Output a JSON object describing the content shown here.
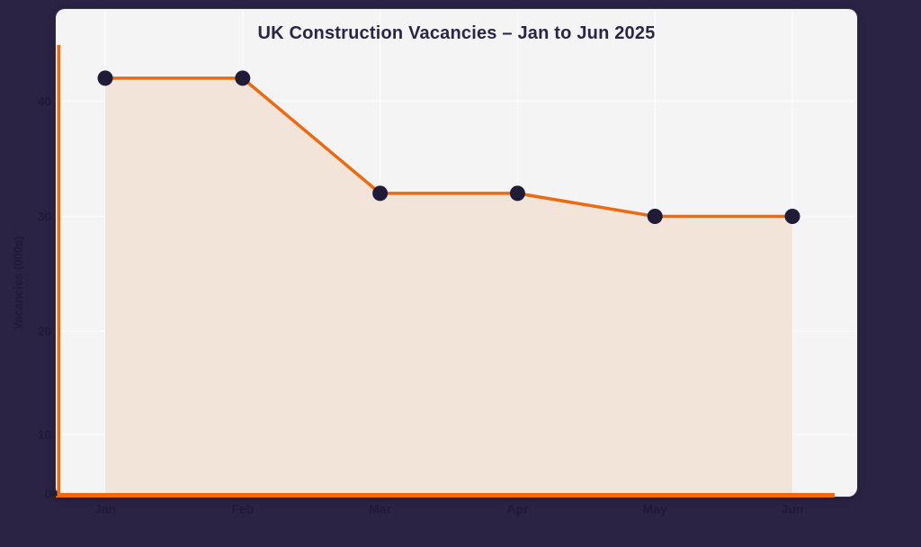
{
  "chart": {
    "title": "UK Construction Vacancies – Jan to Jun 2025",
    "ylabel": "Vacancies (000s)"
  },
  "chart_data": {
    "type": "area",
    "categories": [
      "Jan",
      "Feb",
      "Mar",
      "Apr",
      "May",
      "Jun"
    ],
    "values": [
      42,
      42,
      32,
      32,
      30,
      30
    ],
    "title": "UK Construction Vacancies – Jan to Jun 2025",
    "xlabel": "",
    "ylabel": "Vacancies (000s)",
    "yticks": [
      0,
      10,
      20,
      30,
      40
    ],
    "ylim": [
      0,
      45
    ],
    "grid": true,
    "legend": false,
    "colors": {
      "background": "#2a2343",
      "card": "#f4f4f4",
      "gridline": "#fbfbfb",
      "line": "#ee6a10",
      "area": "#f3e4da",
      "point": "#201c38",
      "title_text": "#2b2545",
      "axis_text": "#1e1a38"
    }
  }
}
